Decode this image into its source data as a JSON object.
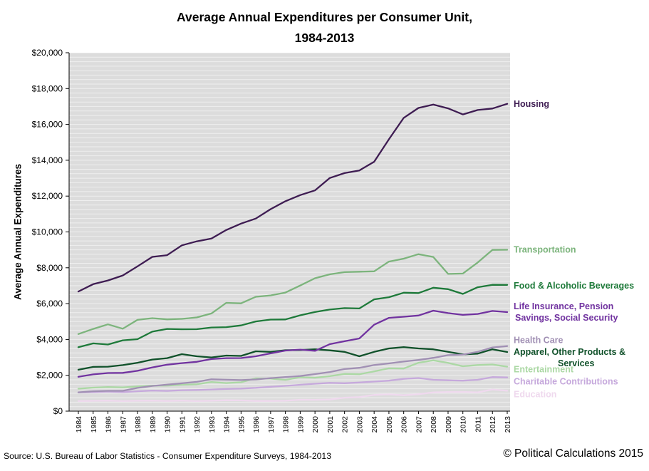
{
  "header": {
    "title": "Average Annual Expenditures per Consumer Unit,",
    "subtitle": "1984-2013"
  },
  "footer": {
    "source": "Source: U.S. Bureau of Labor Statistics - Consumer Expenditure Surveys, 1984-2013",
    "copyright": "© Political Calculations 2015"
  },
  "colors": {
    "plot_bg": "#DCDCDC",
    "gridline": "#FFFFFF",
    "axis": "#000000"
  },
  "chart_data": {
    "type": "line",
    "title": "Average Annual Expenditures per Consumer Unit,",
    "subtitle": "1984-2013",
    "ylabel": "Average Annual Expenditures",
    "xlabel": "",
    "ylim": [
      0,
      20000
    ],
    "y_tick_step": 2000,
    "y_tick_labels": [
      "$0",
      "$2,000",
      "$4,000",
      "$6,000",
      "$8,000",
      "$10,000",
      "$12,000",
      "$14,000",
      "$16,000",
      "$18,000",
      "$20,000"
    ],
    "grid": true,
    "grid_minor_step": 250,
    "legend_position": "right-of-line-ends",
    "years": [
      1984,
      1985,
      1986,
      1987,
      1988,
      1989,
      1990,
      1991,
      1992,
      1993,
      1994,
      1995,
      1996,
      1997,
      1998,
      1999,
      2000,
      2001,
      2002,
      2003,
      2004,
      2005,
      2006,
      2007,
      2008,
      2009,
      2010,
      2011,
      2012,
      2013
    ],
    "series": [
      {
        "id": "housing",
        "label_lines": [
          "Housing"
        ],
        "color": "#3E1C52",
        "values": [
          6674,
          7087,
          7292,
          7569,
          8079,
          8609,
          8703,
          9252,
          9477,
          9636,
          10106,
          10465,
          10747,
          11272,
          11713,
          12057,
          12319,
          13011,
          13283,
          13432,
          13918,
          15167,
          16366,
          16920,
          17109,
          16895,
          16557,
          16803,
          16887,
          17148
        ]
      },
      {
        "id": "transportation",
        "label_lines": [
          "Transportation"
        ],
        "color": "#7CB47C",
        "values": [
          4304,
          4587,
          4842,
          4600,
          5093,
          5187,
          5120,
          5151,
          5228,
          5453,
          6044,
          6016,
          6382,
          6457,
          6616,
          7011,
          7417,
          7633,
          7759,
          7781,
          7801,
          8344,
          8508,
          8758,
          8604,
          7658,
          7677,
          8293,
          8998,
          9004
        ]
      },
      {
        "id": "food_alcohol",
        "label_lines": [
          "Food & Alcoholic Beverages"
        ],
        "color": "#1E7A3A",
        "values": [
          3565,
          3783,
          3719,
          3953,
          4017,
          4436,
          4589,
          4568,
          4574,
          4667,
          4689,
          4782,
          5007,
          5110,
          5119,
          5349,
          5530,
          5670,
          5751,
          5731,
          6240,
          6357,
          6608,
          6590,
          6887,
          6807,
          6541,
          6914,
          7050,
          7047
        ]
      },
      {
        "id": "life_insurance",
        "label_lines": [
          "Life Insurance, Pension",
          "Savings, Social Security"
        ],
        "color": "#7133A0",
        "values": [
          1916,
          2052,
          2126,
          2134,
          2249,
          2442,
          2592,
          2681,
          2750,
          2908,
          2958,
          2964,
          3060,
          3223,
          3381,
          3436,
          3365,
          3737,
          3899,
          4055,
          4823,
          5204,
          5270,
          5336,
          5605,
          5471,
          5373,
          5424,
          5591,
          5528
        ]
      },
      {
        "id": "health_care",
        "label_lines": [
          "Health Care"
        ],
        "color": "#A190B4",
        "values": [
          1049,
          1108,
          1135,
          1135,
          1298,
          1407,
          1480,
          1554,
          1634,
          1776,
          1755,
          1732,
          1770,
          1841,
          1903,
          1959,
          2066,
          2182,
          2350,
          2416,
          2574,
          2664,
          2766,
          2853,
          2976,
          3126,
          3157,
          3313,
          3556,
          3631
        ]
      },
      {
        "id": "apparel_other",
        "label_lines": [
          "Apparel, Other Products &",
          "Services"
        ],
        "color": "#10512A",
        "values": [
          2310,
          2470,
          2480,
          2570,
          2700,
          2880,
          2960,
          3180,
          3060,
          3000,
          3100,
          3080,
          3340,
          3310,
          3400,
          3410,
          3450,
          3390,
          3310,
          3060,
          3310,
          3500,
          3570,
          3500,
          3450,
          3310,
          3170,
          3210,
          3450,
          3300
        ]
      },
      {
        "id": "entertainment",
        "label_lines": [
          "Entertainment"
        ],
        "color": "#ABD8A4",
        "values": [
          1251,
          1311,
          1349,
          1329,
          1379,
          1424,
          1422,
          1472,
          1500,
          1626,
          1567,
          1612,
          1834,
          1813,
          1746,
          1891,
          1863,
          1953,
          2079,
          2060,
          2218,
          2388,
          2376,
          2698,
          2835,
          2693,
          2504,
          2572,
          2605,
          2482
        ]
      },
      {
        "id": "charitable",
        "label_lines": [
          "Charitable Contributions"
        ],
        "color": "#C6A9DC",
        "values": [
          1050,
          1060,
          1090,
          1060,
          1110,
          1150,
          1130,
          1170,
          1180,
          1210,
          1240,
          1260,
          1300,
          1360,
          1410,
          1470,
          1530,
          1580,
          1560,
          1600,
          1650,
          1700,
          1800,
          1850,
          1750,
          1720,
          1700,
          1750,
          1900,
          1880
        ]
      },
      {
        "id": "education",
        "label_lines": [
          "Education"
        ],
        "color": "#EFD9EE",
        "values": [
          560,
          575,
          590,
          560,
          580,
          590,
          570,
          590,
          560,
          580,
          610,
          600,
          570,
          570,
          580,
          635,
          632,
          648,
          752,
          783,
          905,
          940,
          888,
          945,
          1046,
          1068,
          1074,
          1051,
          1207,
          1138
        ]
      }
    ]
  }
}
